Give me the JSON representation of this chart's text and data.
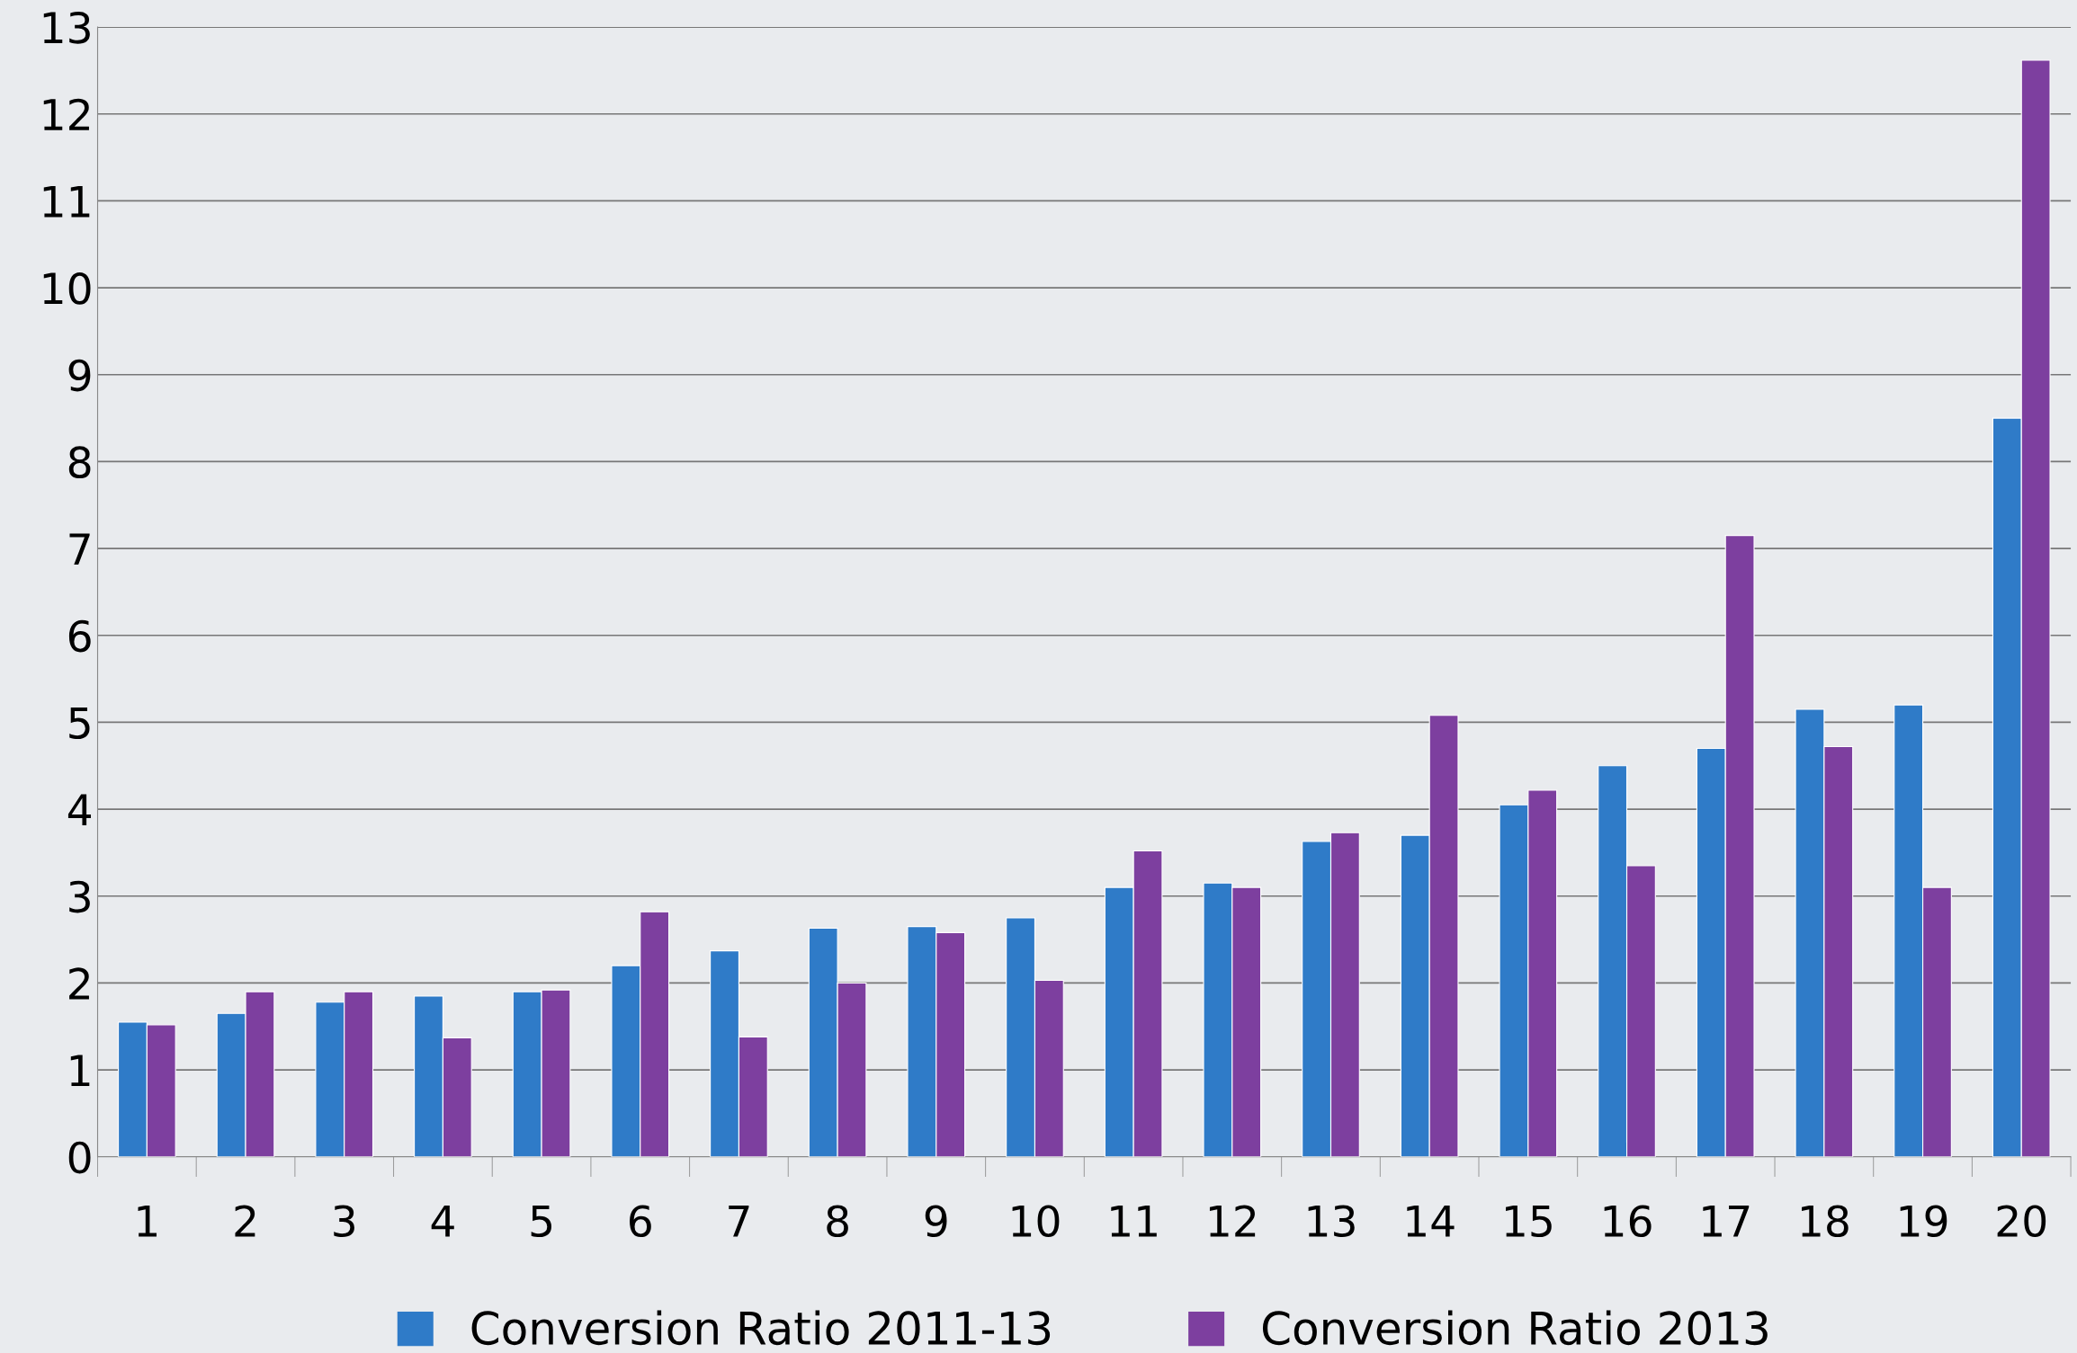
{
  "chart_data": {
    "type": "bar",
    "categories": [
      "1",
      "2",
      "3",
      "4",
      "5",
      "6",
      "7",
      "8",
      "9",
      "10",
      "11",
      "12",
      "13",
      "14",
      "15",
      "16",
      "17",
      "18",
      "19",
      "20"
    ],
    "series": [
      {
        "name": "Conversion Ratio 2011-13",
        "color": "#2f7bc8",
        "values": [
          1.55,
          1.65,
          1.78,
          1.85,
          1.9,
          2.2,
          2.37,
          2.63,
          2.65,
          2.75,
          3.1,
          3.15,
          3.63,
          3.7,
          4.05,
          4.5,
          4.7,
          5.15,
          5.2,
          8.5
        ]
      },
      {
        "name": "Conversion Ratio 2013",
        "color": "#7d3f9f",
        "values": [
          1.52,
          1.9,
          1.9,
          1.37,
          1.92,
          2.82,
          1.38,
          2.0,
          2.58,
          2.03,
          3.52,
          3.1,
          3.73,
          5.08,
          4.22,
          3.35,
          7.15,
          4.72,
          3.1,
          12.62
        ]
      }
    ],
    "ylim": [
      0,
      13
    ],
    "yticks": [
      0,
      1,
      2,
      3,
      4,
      5,
      6,
      7,
      8,
      9,
      10,
      11,
      12,
      13
    ],
    "grid": "y",
    "legend": "bottom"
  }
}
